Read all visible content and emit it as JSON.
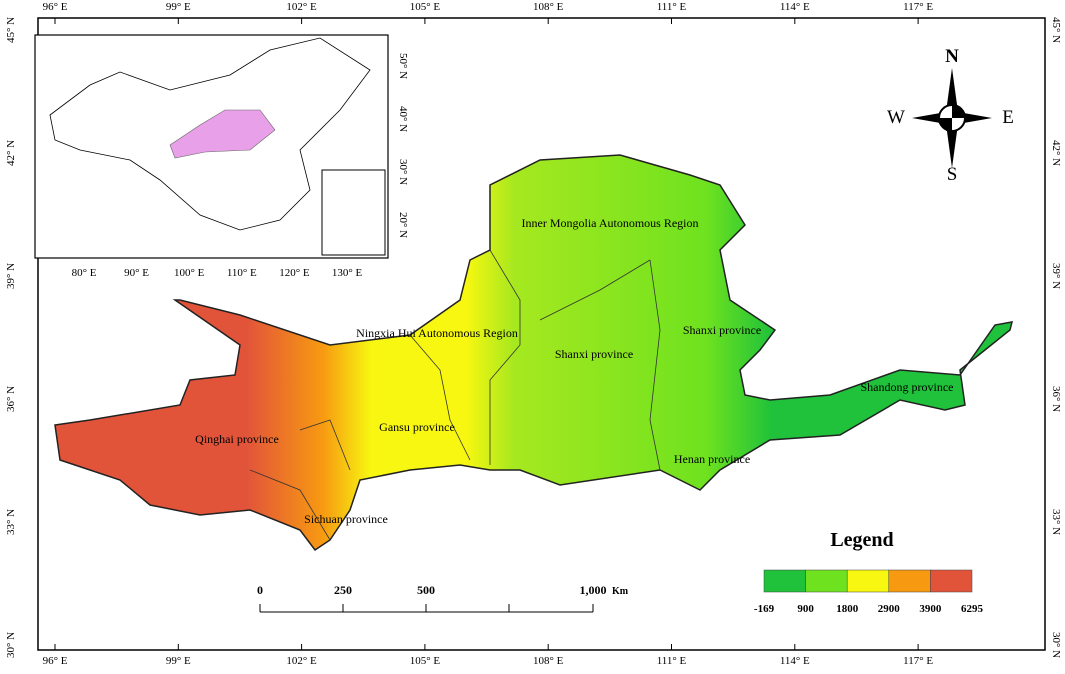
{
  "frame": {
    "top_labels": [
      "96° E",
      "99° E",
      "102° E",
      "105° E",
      "108° E",
      "111° E",
      "114° E",
      "117° E"
    ],
    "bottom_labels": [
      "96° E",
      "99° E",
      "102° E",
      "105° E",
      "108° E",
      "111° E",
      "114° E",
      "117° E"
    ],
    "left_labels": [
      "45° N",
      "42° N",
      "39° N",
      "36° N",
      "33° N",
      "30° N"
    ],
    "right_labels": [
      "45° N",
      "42° N",
      "39° N",
      "36° N",
      "33° N",
      "30° N"
    ]
  },
  "inset": {
    "x_labels": [
      "80° E",
      "90° E",
      "100° E",
      "110° E",
      "120° E",
      "130° E"
    ],
    "y_labels": [
      "50° N",
      "40° N",
      "30° N",
      "20° N"
    ]
  },
  "compass": {
    "n": "N",
    "s": "S",
    "w": "W",
    "e": "E"
  },
  "regions": [
    "Inner Mongolia Autonomous Region",
    "Ningxia Hui Autonomous Region",
    "Shanxi province",
    "Shanxi province",
    "Shandong province",
    "Gansu province",
    "Qinghai province",
    "Henan province",
    "Sichuan province"
  ],
  "scale_bar": {
    "ticks": [
      "0",
      "250",
      "500",
      "1,000"
    ],
    "unit": "Km"
  },
  "legend": {
    "title": "Legend",
    "breaks": [
      "-169",
      "900",
      "1800",
      "2900",
      "3900",
      "6295"
    ],
    "colors": [
      "#1fc23a",
      "#6fe21f",
      "#f7f711",
      "#f79a11",
      "#e2543a"
    ]
  }
}
